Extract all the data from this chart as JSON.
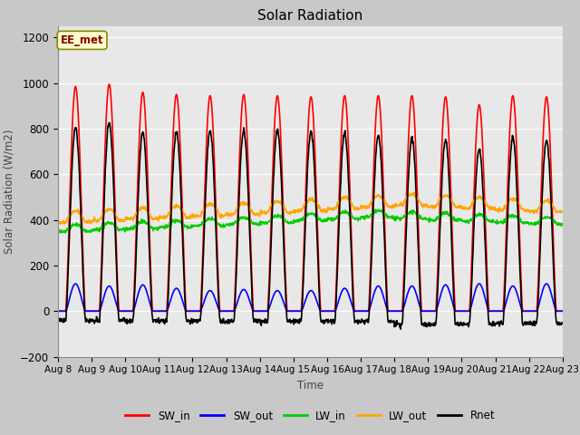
{
  "title": "Solar Radiation",
  "ylabel": "Solar Radiation (W/m2)",
  "xlabel": "Time",
  "ylim": [
    -200,
    1250
  ],
  "yticks": [
    -200,
    0,
    200,
    400,
    600,
    800,
    1000,
    1200
  ],
  "num_days": 15,
  "annotation": "EE_met",
  "fig_facecolor": "#c8c8c8",
  "plot_facecolor": "#e8e8e8",
  "series": {
    "SW_in": {
      "color": "#ff0000",
      "lw": 1.2
    },
    "SW_out": {
      "color": "#0000ff",
      "lw": 1.2
    },
    "LW_in": {
      "color": "#00cc00",
      "lw": 1.2
    },
    "LW_out": {
      "color": "#ffa500",
      "lw": 1.2
    },
    "Rnet": {
      "color": "#000000",
      "lw": 1.2
    }
  },
  "xtick_labels": [
    "Aug 8",
    "Aug 9",
    "Aug 10",
    "Aug 11",
    "Aug 12",
    "Aug 13",
    "Aug 14",
    "Aug 15",
    "Aug 16",
    "Aug 17",
    "Aug 18",
    "Aug 19",
    "Aug 20",
    "Aug 21",
    "Aug 22",
    "Aug 23"
  ],
  "SW_in_peaks": [
    985,
    995,
    960,
    950,
    945,
    950,
    945,
    940,
    945,
    945,
    945,
    940,
    905,
    945,
    940
  ],
  "SW_out_peaks": [
    120,
    110,
    115,
    100,
    90,
    95,
    90,
    90,
    100,
    110,
    110,
    115,
    120,
    110,
    120
  ],
  "LW_in_base": 350,
  "LW_out_base": 390,
  "day_start": 5.5,
  "day_end": 19.5,
  "hours_per_day": 24,
  "Rnet_night": -75
}
